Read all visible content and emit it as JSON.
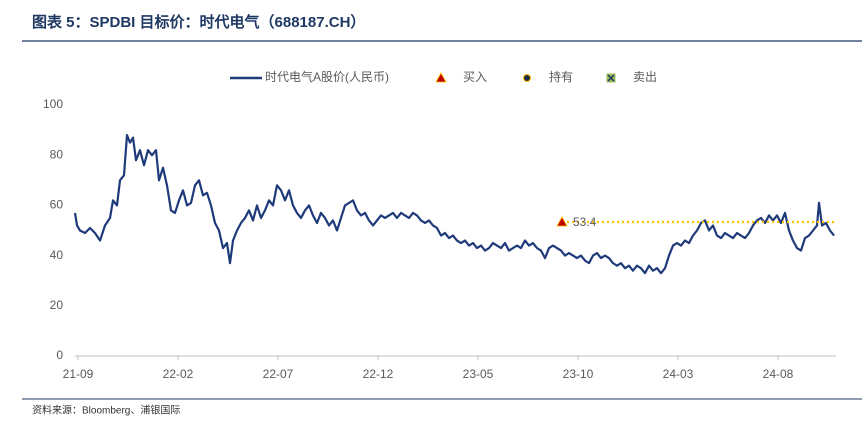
{
  "chart_data": {
    "type": "line",
    "title": "图表 5：SPDBI 目标价：时代电气（688187.CH）",
    "source": "资料来源：Bloomberg、浦银国际",
    "xlim": [
      -0.15,
      37.9
    ],
    "xticks": [
      {
        "value": 0,
        "label": "21-09"
      },
      {
        "value": 5,
        "label": "22-02"
      },
      {
        "value": 10,
        "label": "22-07"
      },
      {
        "value": 15,
        "label": "22-12"
      },
      {
        "value": 20,
        "label": "23-05"
      },
      {
        "value": 25,
        "label": "23-10"
      },
      {
        "value": 30,
        "label": "24-03"
      },
      {
        "value": 35,
        "label": "24-08"
      }
    ],
    "ylim": [
      0,
      100
    ],
    "yticks": [
      0,
      20,
      40,
      60,
      80,
      100
    ],
    "grid": false,
    "series": [
      {
        "name": "时代电气A股价(人民币)",
        "color": "#1f3a7a",
        "x": [
          -0.15,
          -0.05,
          0.1,
          0.35,
          0.6,
          0.85,
          1.1,
          1.35,
          1.6,
          1.75,
          1.95,
          2.1,
          2.3,
          2.45,
          2.6,
          2.75,
          2.9,
          3.1,
          3.3,
          3.5,
          3.7,
          3.9,
          4.05,
          4.25,
          4.45,
          4.65,
          4.85,
          5.05,
          5.25,
          5.45,
          5.65,
          5.85,
          6.05,
          6.25,
          6.45,
          6.65,
          6.85,
          7.05,
          7.25,
          7.45,
          7.6,
          7.75,
          7.95,
          8.15,
          8.35,
          8.55,
          8.75,
          8.95,
          9.15,
          9.35,
          9.55,
          9.75,
          9.95,
          10.15,
          10.35,
          10.55,
          10.75,
          10.95,
          11.15,
          11.35,
          11.55,
          11.75,
          11.95,
          12.15,
          12.35,
          12.55,
          12.75,
          12.95,
          13.15,
          13.35,
          13.55,
          13.75,
          13.95,
          14.15,
          14.35,
          14.55,
          14.75,
          14.95,
          15.15,
          15.35,
          15.55,
          15.75,
          15.95,
          16.15,
          16.35,
          16.55,
          16.75,
          16.95,
          17.15,
          17.35,
          17.55,
          17.75,
          17.95,
          18.15,
          18.35,
          18.55,
          18.75,
          18.95,
          19.15,
          19.35,
          19.55,
          19.75,
          19.95,
          20.15,
          20.35,
          20.55,
          20.75,
          20.95,
          21.15,
          21.35,
          21.55,
          21.75,
          21.95,
          22.15,
          22.35,
          22.55,
          22.75,
          22.95,
          23.15,
          23.35,
          23.55,
          23.75,
          23.95,
          24.15,
          24.35,
          24.55,
          24.75,
          24.95,
          25.15,
          25.35,
          25.55,
          25.75,
          25.95,
          26.15,
          26.35,
          26.55,
          26.75,
          26.95,
          27.15,
          27.35,
          27.55,
          27.75,
          27.95,
          28.15,
          28.35,
          28.55,
          28.75,
          28.95,
          29.15,
          29.35,
          29.55,
          29.75,
          29.95,
          30.15,
          30.35,
          30.55,
          30.75,
          30.95,
          31.15,
          31.35,
          31.55,
          31.75,
          31.95,
          32.15,
          32.35,
          32.55,
          32.75,
          32.95,
          33.15,
          33.35,
          33.55,
          33.75,
          33.95,
          34.15,
          34.35,
          34.55,
          34.75,
          34.95,
          35.15,
          35.35,
          35.55,
          35.75,
          35.95,
          36.15,
          36.35,
          36.55,
          36.75,
          36.95,
          37.05,
          37.2,
          37.4,
          37.6,
          37.8
        ],
        "values": [
          57,
          52,
          50,
          49,
          51,
          49,
          46,
          52,
          55,
          62,
          60,
          70,
          72,
          88,
          85,
          87,
          78,
          82,
          76,
          82,
          80,
          82,
          70,
          75,
          68,
          58,
          57,
          62,
          66,
          60,
          61,
          68,
          70,
          64,
          65,
          60,
          53,
          50,
          43,
          45,
          37,
          46,
          50,
          53,
          55,
          58,
          54,
          60,
          55,
          58,
          62,
          60,
          68,
          66,
          62,
          66,
          60,
          57,
          55,
          58,
          60,
          56,
          53,
          57,
          55,
          52,
          54,
          50,
          55,
          60,
          61,
          62,
          58,
          56,
          57,
          54,
          52,
          54,
          56,
          55,
          56,
          57,
          55,
          57,
          56,
          55,
          57,
          56,
          54,
          53,
          54,
          52,
          51,
          48,
          49,
          47,
          48,
          46,
          45,
          46,
          44,
          45,
          43,
          44,
          42,
          43,
          45,
          44,
          43,
          45,
          42,
          43,
          44,
          43,
          46,
          44,
          45,
          43,
          42,
          39,
          43,
          44,
          43,
          42,
          40,
          41,
          40,
          39,
          40,
          38,
          37,
          40,
          41,
          39,
          40,
          39,
          37,
          36,
          37,
          35,
          36,
          34,
          36,
          35,
          33,
          36,
          34,
          35,
          33,
          35,
          40,
          44,
          45,
          44,
          46,
          45,
          48,
          50,
          53,
          54,
          50,
          52,
          48,
          47,
          49,
          48,
          47,
          49,
          48,
          47,
          49,
          52,
          54,
          55,
          53,
          56,
          54,
          56,
          53,
          57,
          50,
          46,
          43,
          42,
          47,
          48,
          50,
          52,
          61,
          52,
          53,
          50,
          48
        ]
      }
    ],
    "markers": [
      {
        "name": "买入",
        "symbol": "triangle",
        "color": "#c00000",
        "x": [
          24.2
        ],
        "values": [
          53.4
        ],
        "value_labels": [
          "53.4"
        ],
        "line_color": "#ffc000"
      },
      {
        "name": "持有",
        "symbol": "circle",
        "color": "#1f2a44",
        "x": [],
        "values": []
      },
      {
        "name": "卖出",
        "symbol": "cross-square",
        "color": "#9bbb59",
        "x": [],
        "values": []
      }
    ]
  }
}
